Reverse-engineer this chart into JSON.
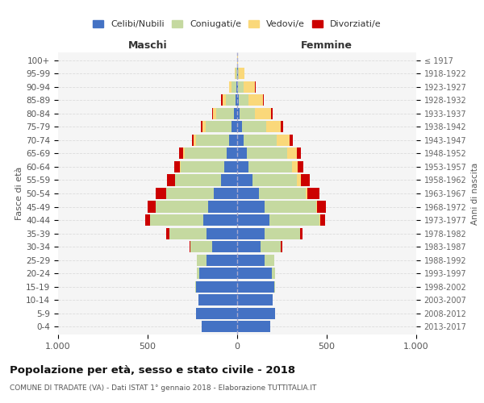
{
  "age_groups": [
    "0-4",
    "5-9",
    "10-14",
    "15-19",
    "20-24",
    "25-29",
    "30-34",
    "35-39",
    "40-44",
    "45-49",
    "50-54",
    "55-59",
    "60-64",
    "65-69",
    "70-74",
    "75-79",
    "80-84",
    "85-89",
    "90-94",
    "95-99",
    "100+"
  ],
  "birth_years": [
    "2013-2017",
    "2008-2012",
    "2003-2007",
    "1998-2002",
    "1993-1997",
    "1988-1992",
    "1983-1987",
    "1978-1982",
    "1973-1977",
    "1968-1972",
    "1963-1967",
    "1958-1962",
    "1953-1957",
    "1948-1952",
    "1943-1947",
    "1938-1942",
    "1933-1937",
    "1928-1932",
    "1923-1927",
    "1918-1922",
    "≤ 1917"
  ],
  "male": {
    "celibi": [
      200,
      230,
      215,
      230,
      210,
      170,
      140,
      170,
      190,
      160,
      130,
      90,
      70,
      60,
      45,
      30,
      20,
      8,
      5,
      2,
      2
    ],
    "coniugati": [
      0,
      0,
      0,
      5,
      15,
      55,
      120,
      210,
      295,
      295,
      265,
      255,
      245,
      235,
      185,
      145,
      95,
      55,
      25,
      5,
      0
    ],
    "vedovi": [
      0,
      0,
      0,
      0,
      0,
      0,
      0,
      0,
      0,
      2,
      2,
      4,
      5,
      8,
      12,
      18,
      20,
      20,
      15,
      5,
      0
    ],
    "divorziati": [
      0,
      0,
      0,
      0,
      0,
      2,
      8,
      15,
      30,
      45,
      60,
      45,
      30,
      20,
      12,
      8,
      5,
      5,
      2,
      0,
      0
    ]
  },
  "female": {
    "nubili": [
      185,
      210,
      200,
      205,
      195,
      155,
      130,
      155,
      180,
      155,
      120,
      85,
      65,
      55,
      35,
      25,
      15,
      10,
      5,
      3,
      1
    ],
    "coniugate": [
      0,
      0,
      0,
      5,
      15,
      50,
      115,
      195,
      280,
      285,
      265,
      250,
      240,
      225,
      185,
      135,
      85,
      55,
      30,
      8,
      0
    ],
    "vedove": [
      0,
      0,
      0,
      0,
      0,
      0,
      0,
      2,
      2,
      5,
      8,
      20,
      35,
      55,
      75,
      85,
      90,
      80,
      65,
      30,
      2
    ],
    "divorziate": [
      0,
      0,
      0,
      0,
      0,
      2,
      5,
      12,
      30,
      50,
      65,
      50,
      30,
      22,
      15,
      10,
      8,
      5,
      2,
      0,
      0
    ]
  },
  "colors": {
    "celibi": "#4472C4",
    "coniugati": "#C5D9A0",
    "vedovi": "#FAD87A",
    "divorziati": "#CC0000"
  },
  "title": "Popolazione per età, sesso e stato civile - 2018",
  "subtitle": "COMUNE DI TRADATE (VA) - Dati ISTAT 1° gennaio 2018 - Elaborazione TUTTITALIA.IT",
  "ylabel_left": "Fasce di età",
  "ylabel_right": "Anni di nascita",
  "xlabel_left": "Maschi",
  "xlabel_right": "Femmine",
  "xlim": 1000,
  "background_color": "#ffffff",
  "plot_bg_color": "#f5f5f5",
  "grid_color": "#dddddd",
  "bar_height": 0.85
}
